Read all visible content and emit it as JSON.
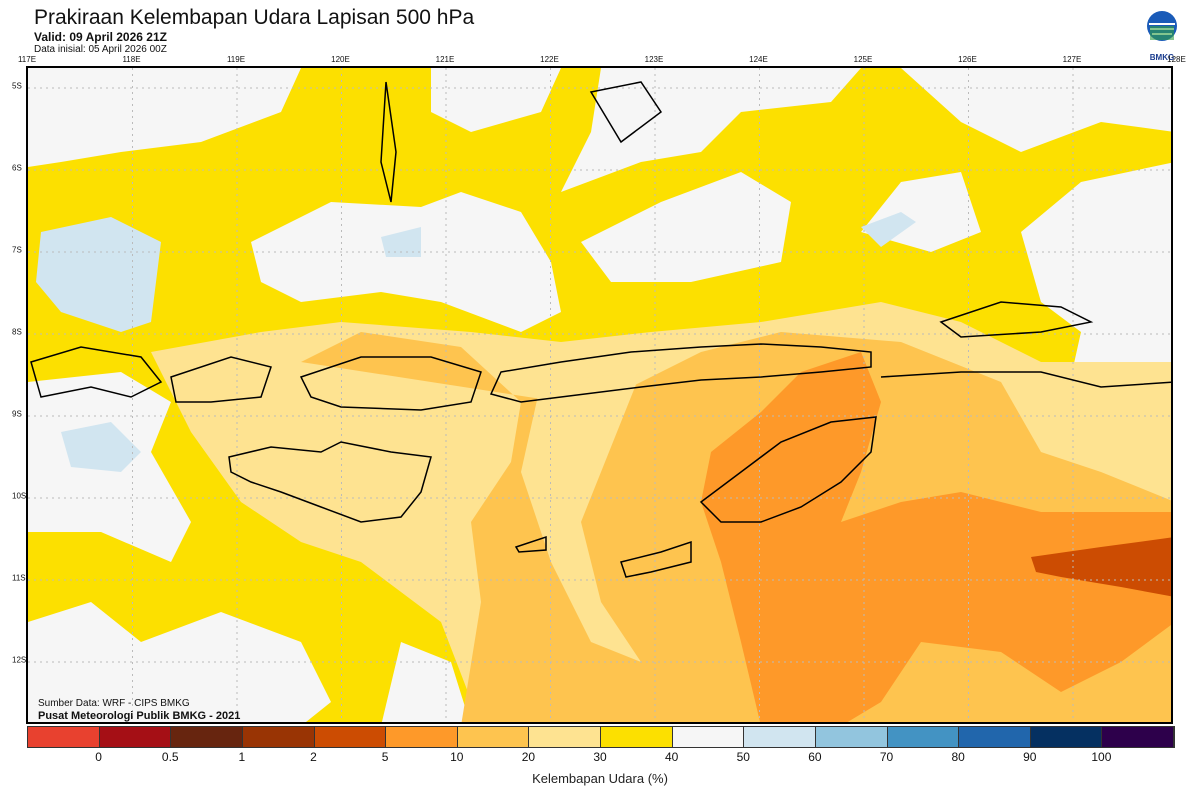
{
  "header": {
    "title": "Prakiraan Kelembapan Udara Lapisan 500 hPa",
    "valid": "Valid: 09 April 2026 21Z",
    "init": "Data inisial: 05 April 2026 00Z"
  },
  "logo": {
    "text": "BMKG"
  },
  "axes": {
    "lon": [
      "117E",
      "118E",
      "119E",
      "120E",
      "121E",
      "122E",
      "123E",
      "124E",
      "125E",
      "126E",
      "127E",
      "128E"
    ],
    "lat": [
      "5S",
      "6S",
      "7S",
      "8S",
      "9S",
      "10S",
      "11S",
      "12S"
    ]
  },
  "credits": {
    "source": "Sumber Data: WRF - CIPS BMKG",
    "org": "Pusat Meteorologi Publik BMKG - 2021"
  },
  "colorbar": {
    "label": "Kelembapan Udara (%)",
    "ticks": [
      "0",
      "0.5",
      "1",
      "2",
      "5",
      "10",
      "20",
      "30",
      "40",
      "50",
      "60",
      "70",
      "80",
      "90",
      "100"
    ],
    "colors": [
      "#e8412f",
      "#a50f15",
      "#67250f",
      "#993404",
      "#cc4c02",
      "#fe9929",
      "#fec44f",
      "#fee391",
      "#fce000",
      "#f6f6f6",
      "#d1e5f0",
      "#92c5de",
      "#4393c3",
      "#2166ac",
      "#053061",
      "#2d004b"
    ]
  }
}
